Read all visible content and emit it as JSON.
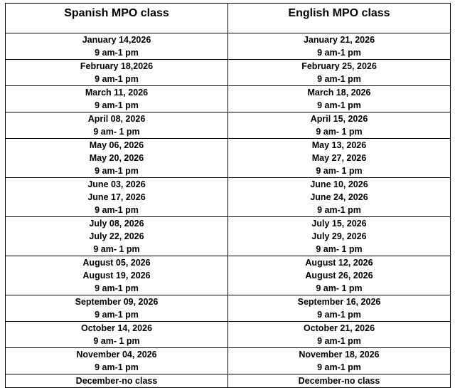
{
  "headers": {
    "spanish": "Spanish MPO class",
    "english": "English MPO class"
  },
  "rows": [
    {
      "spanish": [
        "January 14,2026",
        "9 am-1 pm"
      ],
      "english": [
        "January 21, 2026",
        "9 am-1 pm"
      ]
    },
    {
      "spanish": [
        "February 18,2026",
        "9 am-1 pm"
      ],
      "english": [
        "February 25, 2026",
        "9 am-1 pm"
      ]
    },
    {
      "spanish": [
        "March 11, 2026",
        "9 am-1 pm"
      ],
      "english": [
        "March 18, 2026",
        "9 am-1 pm"
      ]
    },
    {
      "spanish": [
        "April 08, 2026",
        "9 am- 1 pm"
      ],
      "english": [
        "April 15, 2026",
        "9 am- 1 pm"
      ]
    },
    {
      "spanish": [
        "May 06, 2026",
        "May 20, 2026",
        "9 am-1 pm"
      ],
      "english": [
        "May 13, 2026",
        "May 27, 2026",
        "9 am- 1 pm"
      ]
    },
    {
      "spanish": [
        "June 03, 2026",
        "June 17, 2026",
        "9 am-1 pm"
      ],
      "english": [
        "June 10, 2026",
        "June 24, 2026",
        "9 am-1 pm"
      ]
    },
    {
      "spanish": [
        "July 08, 2026",
        "July 22, 2026",
        "9 am- 1 pm"
      ],
      "english": [
        "July 15, 2026",
        "July 29, 2026",
        "9 am- 1 pm"
      ]
    },
    {
      "spanish": [
        "August 05, 2026",
        "August 19, 2026",
        "9 am-1 pm"
      ],
      "english": [
        "August 12, 2026",
        "August 26, 2026",
        "9 am- 1 pm"
      ]
    },
    {
      "spanish": [
        "September 09, 2026",
        "9 am-1 pm"
      ],
      "english": [
        "September 16, 2026",
        "9 am-1 pm"
      ]
    },
    {
      "spanish": [
        "October 14, 2026",
        "9 am- 1 pm"
      ],
      "english": [
        "October 21, 2026",
        "9 am-1 pm"
      ]
    },
    {
      "spanish": [
        "November 04, 2026",
        "9 am-1 pm"
      ],
      "english": [
        "November 18, 2026",
        "9 am-1 pm"
      ]
    },
    {
      "spanish": [
        "December-no class"
      ],
      "english": [
        "December-no class"
      ]
    }
  ]
}
